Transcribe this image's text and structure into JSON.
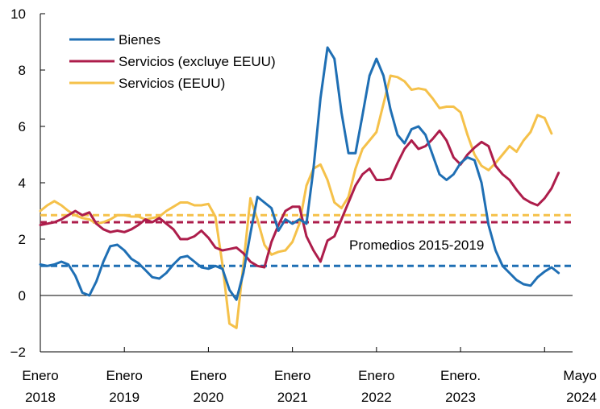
{
  "chart_data": {
    "type": "line",
    "title": "",
    "xlabel": "",
    "ylabel": "",
    "ylim": [
      -2,
      10
    ],
    "yticks": [
      -2,
      0,
      2,
      4,
      6,
      8,
      10
    ],
    "ytick_labels": [
      "−2",
      "0",
      "2",
      "4",
      "6",
      "8",
      "10"
    ],
    "xlim": [
      "2018-01",
      "2024-05"
    ],
    "x_ticks": [
      {
        "x": "2018-01",
        "line1": "Enero",
        "line2": "2018"
      },
      {
        "x": "2019-01",
        "line1": "Enero",
        "line2": "2019"
      },
      {
        "x": "2020-01",
        "line1": "Enero",
        "line2": "2020"
      },
      {
        "x": "2021-01",
        "line1": "Enero",
        "line2": "2021"
      },
      {
        "x": "2022-01",
        "line1": "Enero",
        "line2": "2022"
      },
      {
        "x": "2023-01",
        "line1": "Enero.",
        "line2": "2023"
      },
      {
        "x": "2024-05",
        "line1": "Mayo",
        "line2": "2024"
      }
    ],
    "grid": false,
    "legend_position": "top-left",
    "annotation": "Promedios 2015-2019",
    "series": [
      {
        "name": "Bienes",
        "color": "#1f6fb4",
        "start": "2018-01",
        "values": [
          1.1,
          1.05,
          1.1,
          1.2,
          1.1,
          0.7,
          0.1,
          0.0,
          0.5,
          1.2,
          1.75,
          1.8,
          1.6,
          1.3,
          1.15,
          0.9,
          0.65,
          0.6,
          0.8,
          1.1,
          1.35,
          1.4,
          1.2,
          1.0,
          0.95,
          1.05,
          0.95,
          0.2,
          -0.15,
          0.8,
          2.2,
          3.5,
          3.3,
          3.1,
          2.3,
          2.7,
          2.55,
          2.7,
          2.55,
          4.5,
          7.0,
          8.8,
          8.4,
          6.5,
          5.05,
          5.05,
          6.4,
          7.8,
          8.4,
          7.8,
          6.6,
          5.7,
          5.4,
          5.9,
          6.0,
          5.7,
          5.0,
          4.3,
          4.1,
          4.3,
          4.7,
          4.9,
          4.8,
          4.0,
          2.5,
          1.6,
          1.05,
          0.8,
          0.55,
          0.4,
          0.35,
          0.65,
          0.85,
          1.0,
          0.8
        ]
      },
      {
        "name": "Servicios (excluye EEUU)",
        "color": "#ad1d4b",
        "start": "2018-01",
        "values": [
          2.5,
          2.55,
          2.6,
          2.7,
          2.85,
          3.0,
          2.85,
          2.95,
          2.55,
          2.35,
          2.25,
          2.3,
          2.25,
          2.35,
          2.5,
          2.7,
          2.6,
          2.75,
          2.55,
          2.35,
          2.0,
          2.0,
          2.1,
          2.3,
          2.05,
          1.7,
          1.6,
          1.65,
          1.7,
          1.5,
          1.2,
          1.05,
          1.0,
          1.9,
          2.5,
          3.0,
          3.15,
          3.15,
          2.1,
          1.6,
          1.2,
          1.95,
          2.1,
          2.7,
          3.3,
          3.9,
          4.3,
          4.5,
          4.1,
          4.1,
          4.15,
          4.7,
          5.2,
          5.5,
          5.2,
          5.3,
          5.55,
          5.85,
          5.5,
          4.9,
          4.65,
          5.0,
          5.25,
          5.45,
          5.3,
          4.6,
          4.3,
          4.1,
          3.75,
          3.45,
          3.3,
          3.2,
          3.45,
          3.8,
          4.35
        ]
      },
      {
        "name": "Servicios (EEUU)",
        "color": "#f5c14a",
        "start": "2018-01",
        "values": [
          3.0,
          3.2,
          3.35,
          3.2,
          3.0,
          2.85,
          2.75,
          2.7,
          2.55,
          2.6,
          2.7,
          2.85,
          2.85,
          2.8,
          2.8,
          2.7,
          2.75,
          2.8,
          3.0,
          3.15,
          3.3,
          3.3,
          3.2,
          3.2,
          3.25,
          2.8,
          1.1,
          -1.0,
          -1.15,
          1.1,
          3.45,
          2.7,
          1.8,
          1.45,
          1.55,
          1.6,
          1.9,
          2.55,
          3.9,
          4.5,
          4.65,
          4.1,
          3.3,
          3.1,
          3.5,
          4.5,
          5.2,
          5.5,
          5.8,
          6.8,
          7.8,
          7.75,
          7.6,
          7.3,
          7.35,
          7.3,
          7.0,
          6.65,
          6.7,
          6.7,
          6.5,
          5.7,
          5.0,
          4.6,
          4.45,
          4.7,
          5.0,
          5.3,
          5.1,
          5.5,
          5.8,
          6.4,
          6.3,
          5.75
        ]
      }
    ],
    "averages": [
      {
        "name": "Bienes",
        "value": 1.05,
        "color": "#1f6fb4"
      },
      {
        "name": "Servicios (excluye EEUU)",
        "value": 2.6,
        "color": "#ad1d4b"
      },
      {
        "name": "Servicios (EEUU)",
        "value": 2.85,
        "color": "#f5c14a"
      }
    ]
  }
}
